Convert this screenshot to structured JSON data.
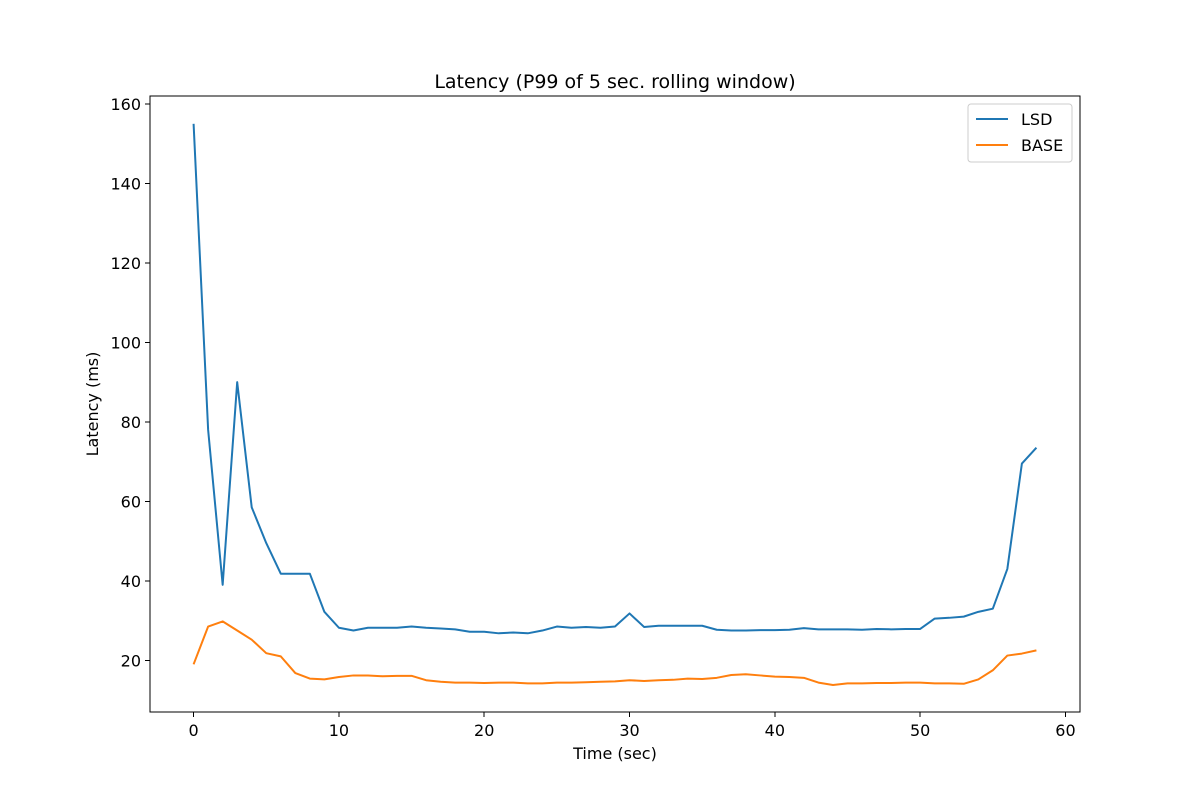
{
  "chart_data": {
    "type": "line",
    "title": "Latency (P99 of 5 sec. rolling window)",
    "xlabel": "Time (sec)",
    "ylabel": "Latency (ms)",
    "xlim": [
      -3,
      61
    ],
    "ylim": [
      7,
      162
    ],
    "xticks": [
      0,
      10,
      20,
      30,
      40,
      50,
      60
    ],
    "yticks": [
      20,
      40,
      60,
      80,
      100,
      120,
      140,
      160
    ],
    "grid": false,
    "legend_position": "top-right",
    "x": [
      0,
      1,
      2,
      3,
      4,
      5,
      6,
      7,
      8,
      9,
      10,
      11,
      12,
      13,
      14,
      15,
      16,
      17,
      18,
      19,
      20,
      21,
      22,
      23,
      24,
      25,
      26,
      27,
      28,
      29,
      30,
      31,
      32,
      33,
      34,
      35,
      36,
      37,
      38,
      39,
      40,
      41,
      42,
      43,
      44,
      45,
      46,
      47,
      48,
      49,
      50,
      51,
      52,
      53,
      54,
      55,
      56,
      57,
      58
    ],
    "series": [
      {
        "name": "LSD",
        "color": "#1f77b4",
        "values": [
          155,
          78,
          39,
          90,
          58.5,
          49.5,
          41.8,
          41.8,
          41.8,
          32.2,
          28.2,
          27.5,
          28.2,
          28.2,
          28.2,
          28.5,
          28.2,
          28.0,
          27.8,
          27.2,
          27.2,
          26.8,
          27.0,
          26.8,
          27.5,
          28.5,
          28.2,
          28.4,
          28.2,
          28.5,
          31.8,
          28.4,
          28.7,
          28.7,
          28.7,
          28.7,
          27.7,
          27.5,
          27.5,
          27.6,
          27.6,
          27.7,
          28.1,
          27.8,
          27.8,
          27.8,
          27.7,
          27.9,
          27.8,
          27.9,
          27.9,
          30.5,
          30.7,
          31.0,
          32.2,
          33.0,
          43.0,
          69.5,
          73.5
        ]
      },
      {
        "name": "BASE",
        "color": "#ff7f0e",
        "values": [
          19,
          28.5,
          29.8,
          27.5,
          25.2,
          21.8,
          21,
          16.8,
          15.4,
          15.2,
          15.8,
          16.2,
          16.2,
          16.0,
          16.1,
          16.1,
          15.0,
          14.6,
          14.4,
          14.4,
          14.3,
          14.4,
          14.4,
          14.2,
          14.2,
          14.4,
          14.4,
          14.5,
          14.6,
          14.7,
          15.0,
          14.8,
          15.0,
          15.1,
          15.4,
          15.3,
          15.6,
          16.3,
          16.5,
          16.2,
          15.9,
          15.8,
          15.6,
          14.4,
          13.8,
          14.2,
          14.2,
          14.3,
          14.3,
          14.4,
          14.4,
          14.2,
          14.2,
          14.1,
          15.2,
          17.5,
          21.2,
          21.7,
          22.5
        ]
      }
    ]
  }
}
